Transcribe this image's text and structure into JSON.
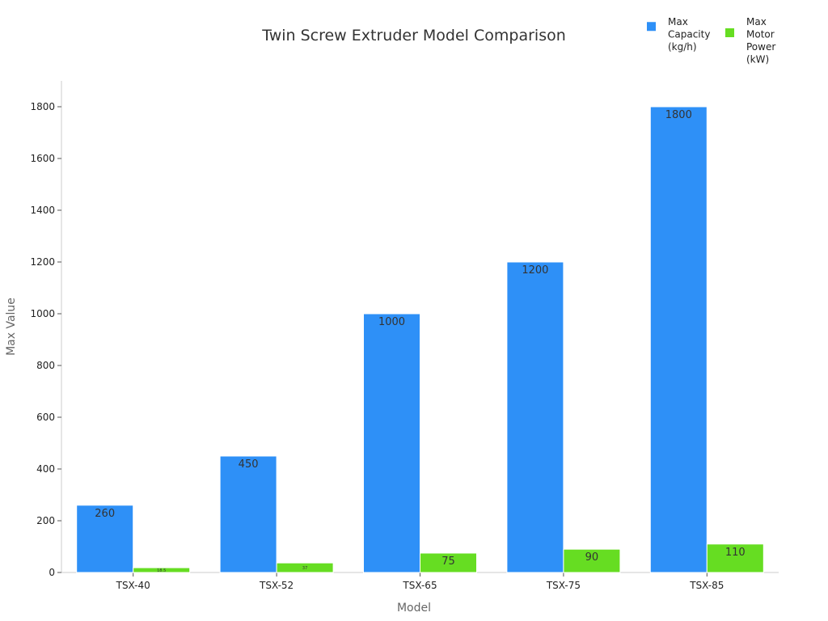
{
  "chart_data": {
    "type": "bar",
    "title": "Twin Screw Extruder Model Comparison",
    "xlabel": "Model",
    "ylabel": "Max Value",
    "categories": [
      "TSX-40",
      "TSX-52",
      "TSX-65",
      "TSX-75",
      "TSX-85"
    ],
    "series": [
      {
        "name": "Max Capacity (kg/h)",
        "values": [
          260,
          450,
          1000,
          1200,
          1800
        ],
        "color": "#2E90F7",
        "labels": [
          "260",
          "450",
          "1000",
          "1200",
          "1800"
        ]
      },
      {
        "name": "Max Motor Power (kW)",
        "values": [
          18.5,
          37,
          75,
          90,
          110
        ],
        "color": "#66DD22",
        "labels": [
          "18.5",
          "37",
          "75",
          "90",
          "110"
        ]
      }
    ],
    "ylim": [
      0,
      1900
    ],
    "yticks": [
      0,
      200,
      400,
      600,
      800,
      1000,
      1200,
      1400,
      1600,
      1800
    ],
    "grid": false,
    "legend_position": "top-right"
  }
}
